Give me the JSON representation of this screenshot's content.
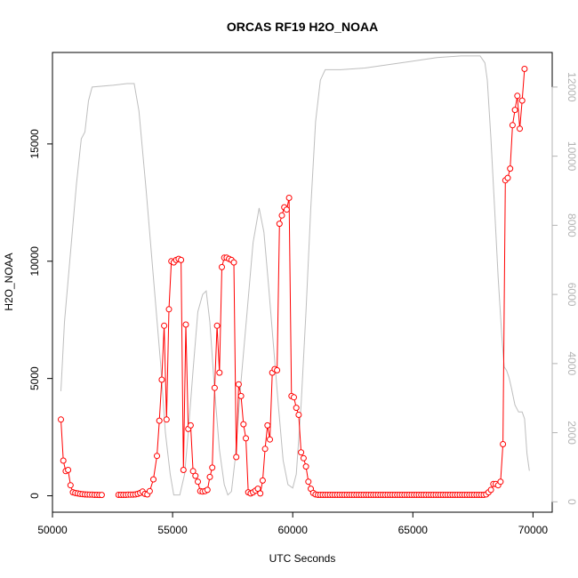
{
  "chart_data": {
    "type": "line",
    "title": "ORCAS RF19 H2O_NOAA",
    "xlabel": "UTC Seconds",
    "ylabel": "H2O_NOAA",
    "xlim": [
      50000,
      70800
    ],
    "ylim": [
      -700,
      18900
    ],
    "x_ticks": [
      50000,
      55000,
      60000,
      65000,
      70000
    ],
    "y_ticks": [
      0,
      5000,
      10000,
      15000
    ],
    "y2_ticks": [
      0,
      2000,
      4000,
      6000,
      8000,
      10000,
      12000
    ],
    "y2lim": [
      -300,
      13000
    ],
    "colors": {
      "primary": "#ff0000",
      "secondary": "#bebebe",
      "right_axis": "#b3b3b3"
    },
    "series": [
      {
        "points": [
          [
            50350,
            3250
          ],
          [
            50450,
            1500
          ],
          [
            50550,
            1050
          ],
          [
            50650,
            1100
          ],
          [
            50750,
            450
          ],
          [
            50850,
            150
          ],
          [
            50950,
            120
          ],
          [
            51050,
            100
          ],
          [
            51150,
            80
          ],
          [
            51250,
            70
          ],
          [
            51350,
            60
          ],
          [
            51450,
            55
          ],
          [
            51550,
            50
          ],
          [
            51650,
            45
          ],
          [
            51750,
            40
          ],
          [
            51850,
            38
          ],
          [
            51950,
            35
          ],
          [
            52050,
            35
          ],
          [
            52750,
            40
          ],
          [
            52850,
            40
          ],
          [
            52950,
            40
          ],
          [
            53050,
            40
          ],
          [
            53150,
            45
          ],
          [
            53250,
            45
          ],
          [
            53350,
            50
          ],
          [
            53450,
            60
          ],
          [
            53550,
            80
          ],
          [
            53650,
            120
          ],
          [
            53750,
            180
          ],
          [
            53850,
            80
          ],
          [
            53950,
            60
          ],
          [
            54050,
            200
          ],
          [
            54200,
            700
          ],
          [
            54350,
            1700
          ],
          [
            54450,
            3200
          ],
          [
            54550,
            4950
          ],
          [
            54650,
            7250
          ],
          [
            54750,
            3250
          ],
          [
            54850,
            7950
          ],
          [
            54950,
            10000
          ],
          [
            55050,
            9950
          ],
          [
            55150,
            10050
          ],
          [
            55250,
            10100
          ],
          [
            55350,
            10050
          ],
          [
            55450,
            1100
          ],
          [
            55550,
            7300
          ],
          [
            55650,
            2850
          ],
          [
            55750,
            3000
          ],
          [
            55850,
            1050
          ],
          [
            55950,
            850
          ],
          [
            56050,
            600
          ],
          [
            56150,
            200
          ],
          [
            56250,
            180
          ],
          [
            56350,
            200
          ],
          [
            56450,
            250
          ],
          [
            56550,
            800
          ],
          [
            56650,
            1200
          ],
          [
            56750,
            4600
          ],
          [
            56850,
            7250
          ],
          [
            56950,
            5250
          ],
          [
            57050,
            9750
          ],
          [
            57150,
            10150
          ],
          [
            57250,
            10150
          ],
          [
            57350,
            10100
          ],
          [
            57450,
            10050
          ],
          [
            57550,
            9950
          ],
          [
            57650,
            1650
          ],
          [
            57750,
            4750
          ],
          [
            57850,
            4250
          ],
          [
            57950,
            3050
          ],
          [
            58050,
            2450
          ],
          [
            58150,
            150
          ],
          [
            58250,
            100
          ],
          [
            58350,
            150
          ],
          [
            58450,
            220
          ],
          [
            58550,
            300
          ],
          [
            58650,
            100
          ],
          [
            58750,
            650
          ],
          [
            58850,
            2000
          ],
          [
            58950,
            3000
          ],
          [
            59050,
            2400
          ],
          [
            59150,
            5250
          ],
          [
            59250,
            5400
          ],
          [
            59350,
            5350
          ],
          [
            59450,
            11600
          ],
          [
            59550,
            11950
          ],
          [
            59650,
            12300
          ],
          [
            59750,
            12200
          ],
          [
            59850,
            12700
          ],
          [
            59950,
            4250
          ],
          [
            60050,
            4200
          ],
          [
            60150,
            3750
          ],
          [
            60250,
            3450
          ],
          [
            60350,
            1850
          ],
          [
            60450,
            1600
          ],
          [
            60550,
            1250
          ],
          [
            60650,
            600
          ],
          [
            60750,
            300
          ],
          [
            60850,
            120
          ],
          [
            60950,
            60
          ],
          [
            61050,
            40
          ],
          [
            61150,
            40
          ],
          [
            61250,
            40
          ],
          [
            61350,
            40
          ],
          [
            61450,
            40
          ],
          [
            61550,
            40
          ],
          [
            61650,
            40
          ],
          [
            61750,
            40
          ],
          [
            61850,
            40
          ],
          [
            61950,
            40
          ],
          [
            62050,
            40
          ],
          [
            62150,
            40
          ],
          [
            62250,
            40
          ],
          [
            62350,
            40
          ],
          [
            62450,
            40
          ],
          [
            62550,
            40
          ],
          [
            62650,
            40
          ],
          [
            62750,
            40
          ],
          [
            62850,
            40
          ],
          [
            62950,
            40
          ],
          [
            63050,
            40
          ],
          [
            63150,
            40
          ],
          [
            63250,
            40
          ],
          [
            63350,
            40
          ],
          [
            63450,
            40
          ],
          [
            63550,
            40
          ],
          [
            63650,
            40
          ],
          [
            63750,
            40
          ],
          [
            63850,
            40
          ],
          [
            63950,
            40
          ],
          [
            64050,
            40
          ],
          [
            64150,
            40
          ],
          [
            64250,
            40
          ],
          [
            64350,
            40
          ],
          [
            64450,
            40
          ],
          [
            64550,
            40
          ],
          [
            64650,
            40
          ],
          [
            64750,
            40
          ],
          [
            64850,
            40
          ],
          [
            64950,
            40
          ],
          [
            65050,
            40
          ],
          [
            65150,
            40
          ],
          [
            65250,
            40
          ],
          [
            65350,
            40
          ],
          [
            65450,
            40
          ],
          [
            65550,
            40
          ],
          [
            65650,
            40
          ],
          [
            65750,
            40
          ],
          [
            65850,
            40
          ],
          [
            65950,
            40
          ],
          [
            66050,
            40
          ],
          [
            66150,
            40
          ],
          [
            66250,
            40
          ],
          [
            66350,
            40
          ],
          [
            66450,
            40
          ],
          [
            66550,
            40
          ],
          [
            66650,
            40
          ],
          [
            66750,
            40
          ],
          [
            66850,
            40
          ],
          [
            66950,
            40
          ],
          [
            67050,
            40
          ],
          [
            67150,
            40
          ],
          [
            67250,
            40
          ],
          [
            67350,
            40
          ],
          [
            67450,
            40
          ],
          [
            67550,
            40
          ],
          [
            67650,
            40
          ],
          [
            67750,
            40
          ],
          [
            67850,
            40
          ],
          [
            67950,
            40
          ],
          [
            68050,
            60
          ],
          [
            68150,
            150
          ],
          [
            68250,
            250
          ],
          [
            68350,
            500
          ],
          [
            68450,
            500
          ],
          [
            68550,
            450
          ],
          [
            68650,
            600
          ],
          [
            68750,
            2200
          ],
          [
            68850,
            13450
          ],
          [
            68950,
            13550
          ],
          [
            69050,
            13950
          ],
          [
            69150,
            15800
          ],
          [
            69250,
            16450
          ],
          [
            69350,
            17050
          ],
          [
            69450,
            15650
          ],
          [
            69550,
            16850
          ],
          [
            69650,
            18200
          ]
        ]
      },
      {
        "axis": "right",
        "points": [
          [
            50350,
            3200
          ],
          [
            50500,
            5200
          ],
          [
            50800,
            7600
          ],
          [
            51000,
            9200
          ],
          [
            51200,
            10500
          ],
          [
            51350,
            10700
          ],
          [
            51500,
            11600
          ],
          [
            51650,
            12000
          ],
          [
            52500,
            12050
          ],
          [
            53100,
            12100
          ],
          [
            53400,
            12100
          ],
          [
            53600,
            11300
          ],
          [
            53900,
            9000
          ],
          [
            54200,
            6500
          ],
          [
            54500,
            4000
          ],
          [
            54700,
            2000
          ],
          [
            54900,
            800
          ],
          [
            55050,
            200
          ],
          [
            55300,
            200
          ],
          [
            55500,
            800
          ],
          [
            55650,
            2000
          ],
          [
            55850,
            3800
          ],
          [
            56050,
            5500
          ],
          [
            56250,
            6000
          ],
          [
            56400,
            6100
          ],
          [
            56550,
            5200
          ],
          [
            56750,
            3200
          ],
          [
            56950,
            1500
          ],
          [
            57150,
            500
          ],
          [
            57300,
            200
          ],
          [
            57450,
            300
          ],
          [
            57600,
            1200
          ],
          [
            57850,
            3500
          ],
          [
            58100,
            5500
          ],
          [
            58350,
            7500
          ],
          [
            58600,
            8500
          ],
          [
            58800,
            7800
          ],
          [
            59000,
            6200
          ],
          [
            59200,
            4500
          ],
          [
            59400,
            2800
          ],
          [
            59600,
            1200
          ],
          [
            59800,
            500
          ],
          [
            60000,
            400
          ],
          [
            60150,
            800
          ],
          [
            60350,
            2800
          ],
          [
            60550,
            5500
          ],
          [
            60750,
            8500
          ],
          [
            60950,
            11000
          ],
          [
            61150,
            12200
          ],
          [
            61350,
            12500
          ],
          [
            62000,
            12500
          ],
          [
            63000,
            12550
          ],
          [
            64000,
            12650
          ],
          [
            65000,
            12750
          ],
          [
            66000,
            12850
          ],
          [
            67000,
            12900
          ],
          [
            67800,
            12900
          ],
          [
            68000,
            12700
          ],
          [
            68100,
            12200
          ],
          [
            68250,
            10500
          ],
          [
            68400,
            8500
          ],
          [
            68550,
            6500
          ],
          [
            68700,
            4800
          ],
          [
            68800,
            3900
          ],
          [
            68900,
            3800
          ],
          [
            69000,
            3600
          ],
          [
            69100,
            3300
          ],
          [
            69250,
            2800
          ],
          [
            69400,
            2600
          ],
          [
            69550,
            2600
          ],
          [
            69650,
            2400
          ],
          [
            69750,
            1400
          ],
          [
            69850,
            900
          ]
        ]
      }
    ]
  }
}
